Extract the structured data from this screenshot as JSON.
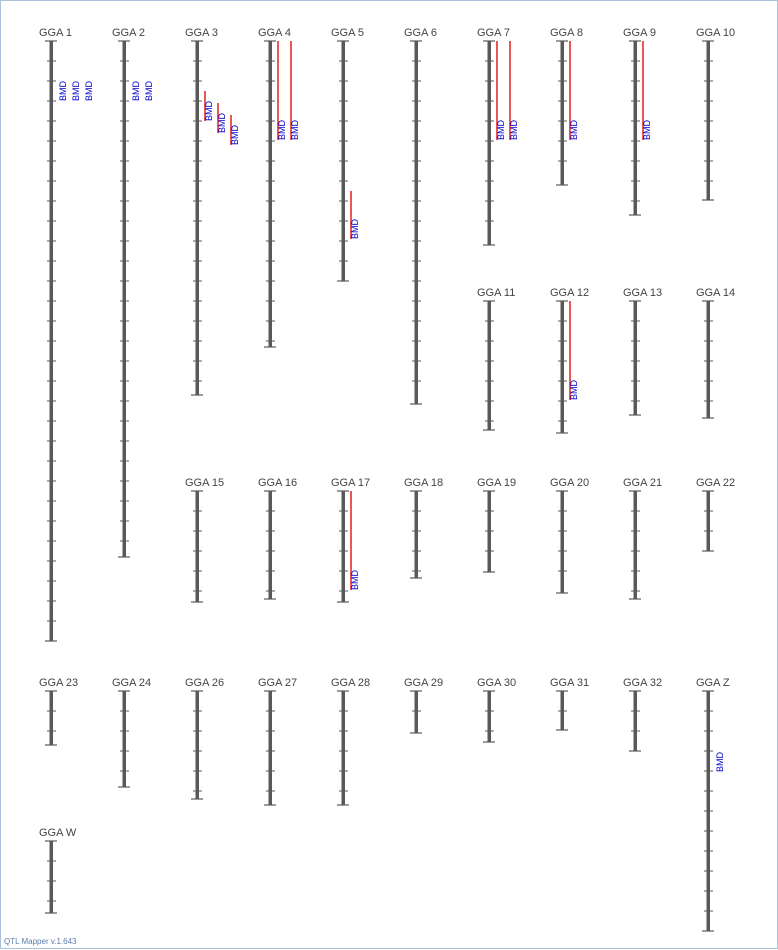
{
  "footer": "QTL Mapper v.1.643",
  "colors": {
    "chromosome": "#595959",
    "qtl_line": "#e02020",
    "qtl_text": "#0000cc"
  },
  "chromosomes": [
    {
      "name": "GGA 1",
      "length": 10,
      "qtls": [
        {
          "label": "BMD",
          "start": 1.0,
          "end": 1.0
        },
        {
          "label": "BMD",
          "start": 1.0,
          "end": 1.0
        },
        {
          "label": "BMD",
          "start": 1.0,
          "end": 1.0
        }
      ]
    },
    {
      "name": "GGA 2",
      "length": 8.6,
      "qtls": [
        {
          "label": "BMD",
          "start": 1.0,
          "end": 1.0
        },
        {
          "label": "BMD",
          "start": 1.0,
          "end": 1.0
        }
      ]
    },
    {
      "name": "GGA 3",
      "length": 5.9,
      "qtls": [
        {
          "label": "BMD",
          "start": 0.83,
          "end": 0.83
        },
        {
          "label": "BMD",
          "start": 0.83,
          "end": 0.83
        },
        {
          "label": "BMD",
          "start": 1.03,
          "end": 1.03
        }
      ]
    },
    {
      "name": "GGA 4",
      "length": 5.1,
      "qtls": [
        {
          "label": "BMD",
          "start": 0,
          "end": 1.65
        },
        {
          "label": "BMD",
          "start": 0,
          "end": 1.65
        }
      ]
    },
    {
      "name": "GGA 5",
      "length": 4.0,
      "qtls": [
        {
          "label": "BMD",
          "start": 2.5,
          "end": 3.3
        }
      ]
    },
    {
      "name": "GGA 6",
      "length": 6.05,
      "qtls": []
    },
    {
      "name": "GGA 7",
      "length": 3.4,
      "qtls": [
        {
          "label": "BMD",
          "start": 0,
          "end": 1.65
        },
        {
          "label": "BMD",
          "start": 0,
          "end": 1.65
        }
      ]
    },
    {
      "name": "GGA 8",
      "length": 2.4,
      "qtls": [
        {
          "label": "BMD",
          "start": 0,
          "end": 1.65
        }
      ]
    },
    {
      "name": "GGA 9",
      "length": 2.9,
      "qtls": [
        {
          "label": "BMD",
          "start": 0,
          "end": 1.65
        }
      ]
    },
    {
      "name": "GGA 10",
      "length": 2.65,
      "qtls": []
    },
    {
      "name": "GGA 11",
      "length": 2.15,
      "qtls": []
    },
    {
      "name": "GGA 12",
      "length": 2.2,
      "qtls": [
        {
          "label": "BMD",
          "start": 0,
          "end": 1.65
        }
      ]
    },
    {
      "name": "GGA 13",
      "length": 1.9,
      "qtls": []
    },
    {
      "name": "GGA 14",
      "length": 1.95,
      "qtls": []
    },
    {
      "name": "GGA 15",
      "length": 1.85,
      "qtls": []
    },
    {
      "name": "GGA 16",
      "length": 1.8,
      "qtls": []
    },
    {
      "name": "GGA 17",
      "length": 1.85,
      "qtls": [
        {
          "label": "BMD",
          "start": 0,
          "end": 1.65
        }
      ]
    },
    {
      "name": "GGA 18",
      "length": 1.45,
      "qtls": []
    },
    {
      "name": "GGA 19",
      "length": 1.35,
      "qtls": []
    },
    {
      "name": "GGA 20",
      "length": 1.7,
      "qtls": []
    },
    {
      "name": "GGA 21",
      "length": 1.8,
      "qtls": []
    },
    {
      "name": "GGA 22",
      "length": 1.0,
      "qtls": []
    },
    {
      "name": "GGA 23",
      "length": 0.9,
      "qtls": []
    },
    {
      "name": "GGA 24",
      "length": 1.6,
      "qtls": []
    },
    {
      "name": "GGA 26",
      "length": 1.8,
      "qtls": []
    },
    {
      "name": "GGA 27",
      "length": 1.9,
      "qtls": []
    },
    {
      "name": "GGA 28",
      "length": 1.9,
      "qtls": []
    },
    {
      "name": "GGA 29",
      "length": 0.7,
      "qtls": []
    },
    {
      "name": "GGA 30",
      "length": 0.85,
      "qtls": []
    },
    {
      "name": "GGA 31",
      "length": 0.65,
      "qtls": []
    },
    {
      "name": "GGA 32",
      "length": 1.0,
      "qtls": []
    },
    {
      "name": "GGA Z",
      "length": 4.0,
      "qtls": [
        {
          "label": "BMD",
          "start": 1.35,
          "end": 1.35
        }
      ]
    },
    {
      "name": "GGA W",
      "length": 1.2,
      "qtls": []
    }
  ]
}
